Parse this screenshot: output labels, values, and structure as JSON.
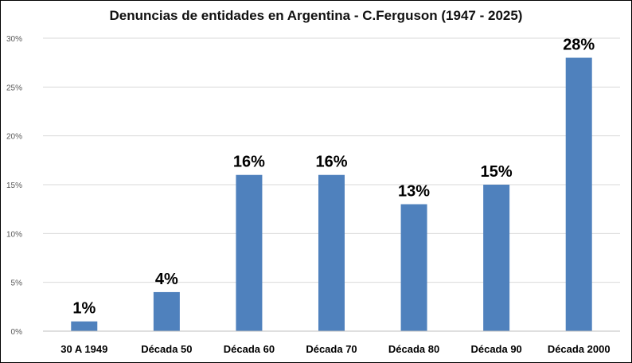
{
  "chart_data": {
    "type": "bar",
    "title": "Denuncias de entidades en Argentina - C.Ferguson (1947 - 2025)",
    "xlabel": "",
    "ylabel": "",
    "categories": [
      "30 A 1949",
      "Década 50",
      "Década 60",
      "Década 70",
      "Década 80",
      "Década 90",
      "Década 2000"
    ],
    "values": [
      1,
      4,
      16,
      16,
      13,
      15,
      28
    ],
    "data_labels": [
      "1%",
      "4%",
      "16%",
      "16%",
      "13%",
      "15%",
      "28%"
    ],
    "ylim": [
      0,
      30
    ],
    "y_ticks": [
      "0%",
      "5%",
      "10%",
      "15%",
      "20%",
      "25%",
      "30%"
    ],
    "grid": true,
    "bar_color": "#4F81BD",
    "grid_color": "#D9D9D9"
  }
}
